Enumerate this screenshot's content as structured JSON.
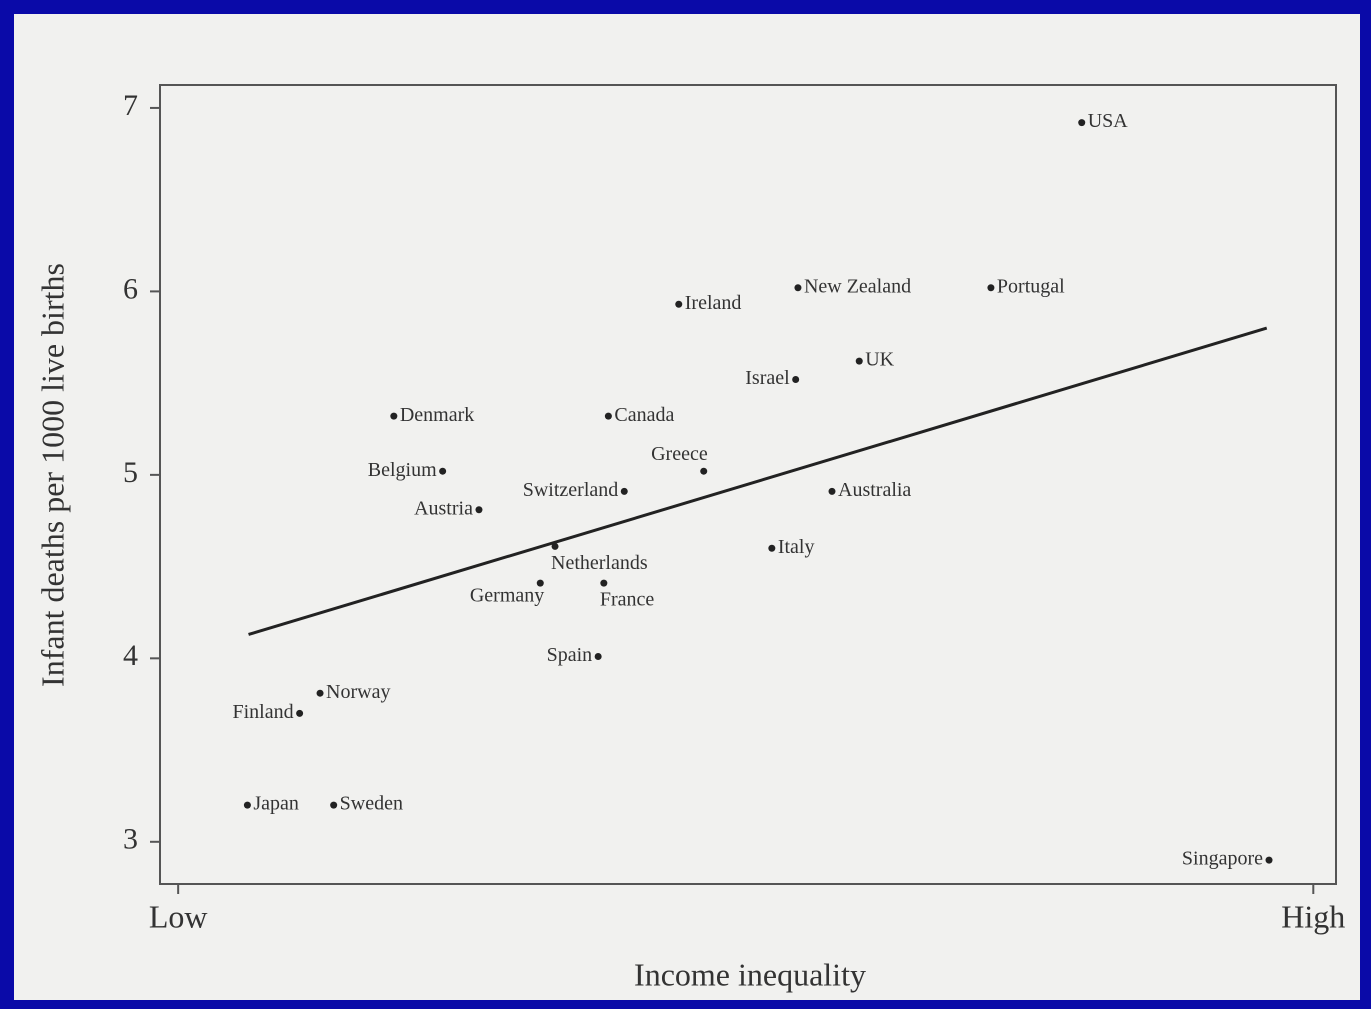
{
  "chart_data": {
    "type": "scatter",
    "xlabel": "Income inequality",
    "ylabel": "Infant deaths per 1000 live births",
    "xlim": [
      -0.016,
      1.02
    ],
    "ylim": [
      2.77,
      7.125
    ],
    "xticks": [
      {
        "value": 0,
        "label": "Low"
      },
      {
        "value": 1,
        "label": "High"
      }
    ],
    "yticks": [
      3,
      4,
      5,
      6,
      7
    ],
    "color": "#222222",
    "series": [
      {
        "labels": [
          "USA",
          "New Zealand",
          "Portugal",
          "Ireland",
          "UK",
          "Israel",
          "Denmark",
          "Canada",
          "Greece",
          "Belgium",
          "Switzerland",
          "Australia",
          "Austria",
          "Netherlands",
          "Italy",
          "Germany",
          "France",
          "Spain",
          "Norway",
          "Finland",
          "Japan",
          "Sweden",
          "Singapore"
        ],
        "x": [
          0.796,
          0.546,
          0.716,
          0.441,
          0.6,
          0.544,
          0.19,
          0.379,
          0.463,
          0.233,
          0.393,
          0.576,
          0.265,
          0.332,
          0.523,
          0.319,
          0.375,
          0.37,
          0.125,
          0.107,
          0.061,
          0.137,
          0.961
        ],
        "values": [
          6.92,
          6.02,
          6.02,
          5.93,
          5.62,
          5.52,
          5.32,
          5.32,
          5.02,
          5.02,
          4.91,
          4.91,
          4.81,
          4.61,
          4.6,
          4.41,
          4.41,
          4.01,
          3.81,
          3.7,
          3.2,
          3.2,
          2.9
        ]
      }
    ],
    "trendline": {
      "x": [
        0.062,
        0.959
      ],
      "values": [
        4.13,
        5.8
      ]
    }
  }
}
